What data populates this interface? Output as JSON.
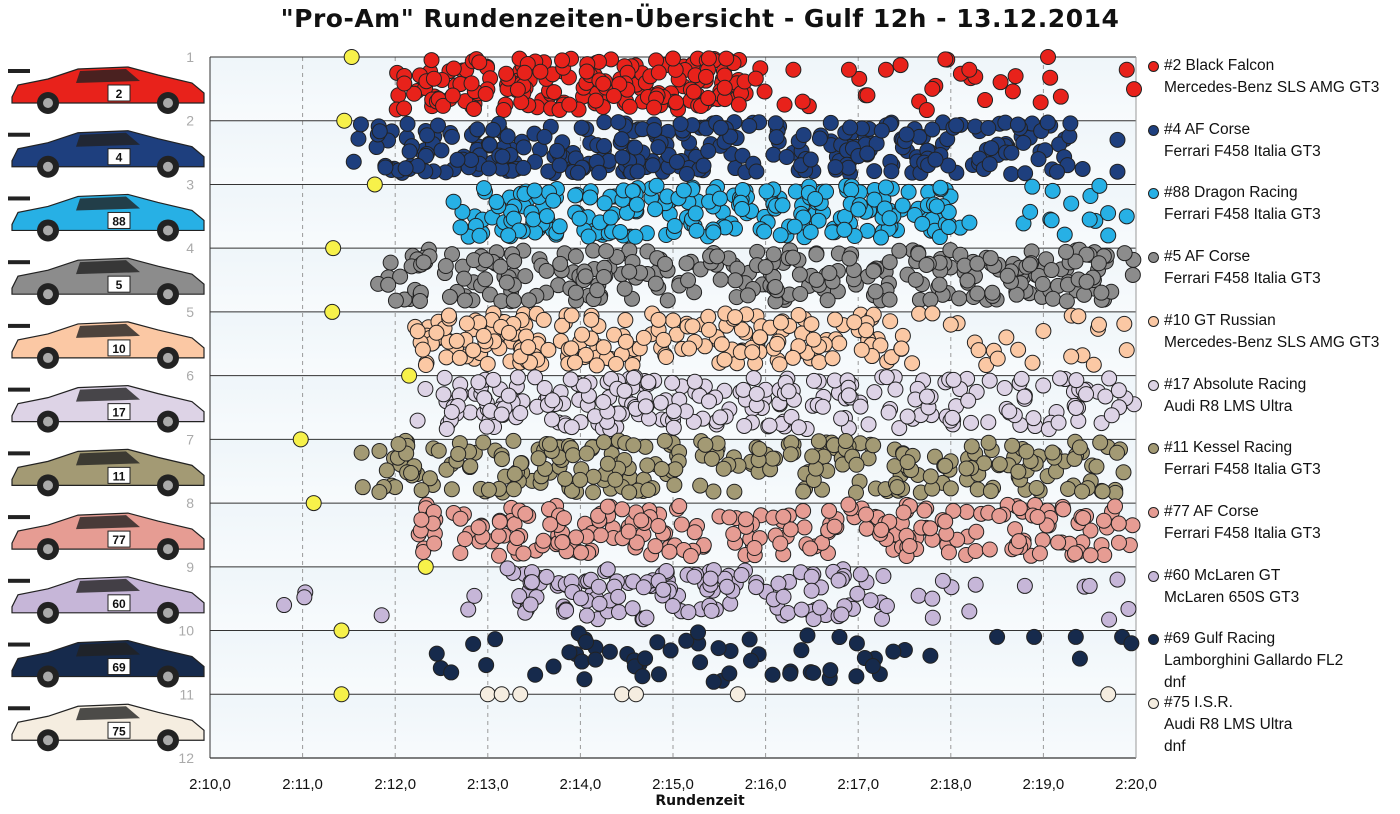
{
  "chart_data": {
    "type": "scatter",
    "title": "\"Pro-Am\" Rundenzeiten-Übersicht - Gulf 12h - 13.12.2014",
    "xlabel": "Rundenzeit",
    "ylabel": "",
    "xlim": [
      130,
      140
    ],
    "ylim": [
      12,
      1
    ],
    "x_tick_labels": [
      "2:10,0",
      "2:11,0",
      "2:12,0",
      "2:13,0",
      "2:14,0",
      "2:15,0",
      "2:16,0",
      "2:17,0",
      "2:18,0",
      "2:19,0",
      "2:20,0"
    ],
    "y_tick_labels": [
      "1",
      "2",
      "3",
      "4",
      "5",
      "6",
      "7",
      "8",
      "9",
      "10",
      "11",
      "12"
    ],
    "grid": "dashed vertical gridlines, solid horizontal gridlines",
    "legend": "right",
    "series": [
      {
        "name": "#2 Black Falcon",
        "car": "Mercedes-Benz SLS AMG GT3",
        "number": "2",
        "color": "#e8221b",
        "row": 1,
        "best_lap": 131.53,
        "min": 132.0,
        "max": 140.0,
        "dense_min": 132.0,
        "dense_max": 135.8,
        "count": 230,
        "outliers": [
          [
            136.3,
            1.2
          ],
          [
            136.9,
            1.2
          ],
          [
            137.3,
            1.2
          ],
          [
            137.8,
            1.5
          ],
          [
            138.2,
            1.2
          ],
          [
            138.7,
            1.3
          ],
          [
            139.05,
            1.0
          ],
          [
            139.9,
            1.2
          ],
          [
            136.4,
            1.7
          ],
          [
            137.1,
            1.6
          ]
        ]
      },
      {
        "name": "#4 AF Corse",
        "car": "Ferrari F458 Italia GT3",
        "number": "4",
        "color": "#1e3f7e",
        "row": 2,
        "best_lap": 131.45,
        "min": 131.5,
        "max": 139.9,
        "dense_min": 131.8,
        "dense_max": 139.4,
        "count": 320,
        "outliers": [
          [
            139.8,
            2.3
          ],
          [
            139.8,
            2.8
          ]
        ]
      },
      {
        "name": "#88 Dragon Racing",
        "car": "Ferrari F458 Italia GT3",
        "number": "88",
        "color": "#27b0e5",
        "row": 3,
        "best_lap": 131.78,
        "min": 132.6,
        "max": 139.9,
        "dense_min": 132.8,
        "dense_max": 138.0,
        "count": 250,
        "outliers": [
          [
            139.1,
            3.1
          ],
          [
            139.3,
            3.3
          ],
          [
            139.5,
            3.55
          ],
          [
            139.7,
            3.8
          ],
          [
            139.9,
            3.5
          ]
        ]
      },
      {
        "name": "#5 AF Corse",
        "car": "Ferrari F458 Italia GT3",
        "number": "5",
        "color": "#8c8c8c",
        "row": 4,
        "best_lap": 131.33,
        "min": 131.8,
        "max": 140.0,
        "dense_min": 131.9,
        "dense_max": 139.9,
        "count": 290,
        "outliers": []
      },
      {
        "name": "#10 GT Russian",
        "car": "Mercedes-Benz SLS AMG GT3",
        "number": "10",
        "color": "#fbc8a4",
        "row": 5,
        "best_lap": 131.32,
        "min": 132.3,
        "max": 139.9,
        "dense_min": 132.2,
        "dense_max": 137.6,
        "count": 230,
        "outliers": [
          [
            138.0,
            5.2
          ],
          [
            138.3,
            5.6
          ],
          [
            138.6,
            5.4
          ],
          [
            139.0,
            5.3
          ],
          [
            139.3,
            5.7
          ],
          [
            139.6,
            5.2
          ],
          [
            139.9,
            5.6
          ]
        ]
      },
      {
        "name": "#17 Absolute Racing",
        "car": "Audi R8 LMS Ultra",
        "number": "17",
        "color": "#ddd3e6",
        "row": 6,
        "best_lap": 132.15,
        "min": 132.2,
        "max": 140.0,
        "dense_min": 132.3,
        "dense_max": 139.9,
        "count": 260,
        "outliers": []
      },
      {
        "name": "#11 Kessel Racing",
        "car": "Ferrari F458 Italia GT3",
        "number": "11",
        "color": "#a39a74",
        "row": 7,
        "best_lap": 130.98,
        "min": 131.6,
        "max": 140.0,
        "dense_min": 131.8,
        "dense_max": 139.9,
        "count": 270,
        "outliers": [
          [
            131.65,
            7.75
          ]
        ]
      },
      {
        "name": "#77 AF Corse",
        "car": "Ferrari F458 Italia GT3",
        "number": "77",
        "color": "#e69c93",
        "row": 8,
        "best_lap": 131.12,
        "min": 132.1,
        "max": 140.0,
        "dense_min": 132.2,
        "dense_max": 139.9,
        "count": 250,
        "outliers": []
      },
      {
        "name": "#60 McLaren GT",
        "car": "McLaren 650S GT3",
        "number": "60",
        "color": "#c6b6d8",
        "row": 9,
        "best_lap": 132.33,
        "min": 130.8,
        "max": 140.0,
        "dense_min": 133.2,
        "dense_max": 137.4,
        "count": 150,
        "outliers": [
          [
            130.8,
            9.6
          ],
          [
            139.5,
            9.3
          ],
          [
            139.8,
            9.2
          ],
          [
            138.8,
            9.3
          ],
          [
            137.8,
            9.5
          ],
          [
            138.2,
            9.7
          ]
        ]
      },
      {
        "name": "#69 Gulf Racing",
        "car": "Lamborghini Gallardo FL2",
        "status": "dnf",
        "number": "69",
        "color": "#162a4c",
        "row": 10,
        "best_lap": 131.42,
        "min": 132.4,
        "max": 139.9,
        "dense_min": 132.4,
        "dense_max": 137.4,
        "count": 60,
        "outliers": [
          [
            138.5,
            10.1
          ],
          [
            138.9,
            10.1
          ],
          [
            139.35,
            10.1
          ],
          [
            139.85,
            10.1
          ],
          [
            139.95,
            10.2
          ]
        ]
      },
      {
        "name": "#75 I.S.R.",
        "car": "Audi R8 LMS Ultra",
        "status": "dnf",
        "number": "75",
        "color": "#f5ede0",
        "row": 11,
        "best_lap": 131.42,
        "min": 133.0,
        "max": 139.7,
        "dense_min": 133.0,
        "dense_max": 139.7,
        "count": 7,
        "points": [
          [
            133.0,
            11.0
          ],
          [
            133.15,
            11.0
          ],
          [
            133.35,
            11.0
          ],
          [
            134.45,
            11.0
          ],
          [
            134.6,
            11.0
          ],
          [
            135.7,
            11.0
          ],
          [
            139.7,
            11.0
          ]
        ]
      }
    ],
    "best_lap_marker_color": "#f7f14a"
  }
}
